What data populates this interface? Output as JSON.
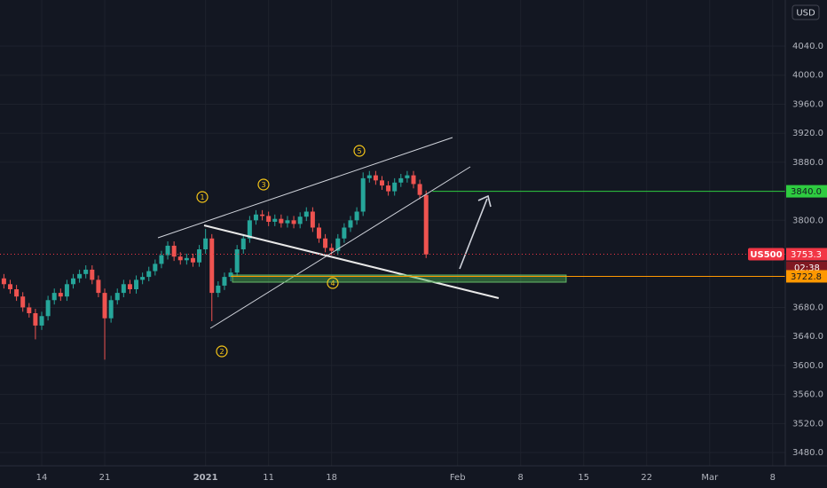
{
  "chart_data": {
    "type": "candlestick",
    "currency": "USD",
    "x": [
      -3,
      -2.5,
      -2,
      -1.5,
      -1,
      -0.5,
      0,
      0.5,
      1,
      1.5,
      2,
      2.5,
      3,
      3.5,
      4,
      4.5,
      5,
      5.5,
      6,
      6.5,
      7,
      7.5,
      8,
      8.5,
      9,
      9.5,
      10,
      10.5,
      11,
      11.5,
      12,
      12.5,
      13,
      13.5,
      14,
      14.5,
      15,
      15.5,
      16,
      16.5,
      17,
      17.5,
      18,
      18.5,
      19,
      19.5,
      20,
      20.5,
      21,
      21.5,
      22,
      22.5,
      23,
      23.5,
      24,
      24.5,
      25,
      25.5,
      26,
      26.5,
      27,
      27.5,
      28,
      28.5,
      29,
      29.5,
      30,
      30.5
    ],
    "open": [
      3720,
      3712,
      3705,
      3695,
      3680,
      3672,
      3655,
      3668,
      3690,
      3700,
      3695,
      3712,
      3720,
      3726,
      3732,
      3718,
      3700,
      3665,
      3690,
      3700,
      3712,
      3705,
      3718,
      3722,
      3730,
      3740,
      3752,
      3765,
      3750,
      3745,
      3748,
      3742,
      3760,
      3775,
      3700,
      3710,
      3722,
      3728,
      3760,
      3775,
      3800,
      3808,
      3806,
      3798,
      3802,
      3796,
      3800,
      3795,
      3805,
      3812,
      3790,
      3775,
      3762,
      3758,
      3775,
      3790,
      3800,
      3812,
      3858,
      3862,
      3855,
      3848,
      3840,
      3852,
      3858,
      3862,
      3850,
      3835
    ],
    "high": [
      3726,
      3718,
      3711,
      3701,
      3686,
      3678,
      3674,
      3696,
      3706,
      3706,
      3718,
      3726,
      3732,
      3738,
      3738,
      3724,
      3706,
      3696,
      3706,
      3718,
      3718,
      3724,
      3728,
      3736,
      3746,
      3758,
      3771,
      3771,
      3756,
      3754,
      3754,
      3766,
      3788,
      3781,
      3716,
      3728,
      3734,
      3766,
      3781,
      3806,
      3814,
      3814,
      3812,
      3808,
      3808,
      3806,
      3806,
      3811,
      3818,
      3818,
      3796,
      3781,
      3768,
      3781,
      3796,
      3806,
      3818,
      3866,
      3868,
      3868,
      3861,
      3854,
      3858,
      3864,
      3868,
      3868,
      3856,
      3841
    ],
    "low": [
      3706,
      3699,
      3689,
      3674,
      3666,
      3636,
      3649,
      3662,
      3684,
      3689,
      3689,
      3706,
      3714,
      3720,
      3712,
      3694,
      3608,
      3659,
      3684,
      3694,
      3699,
      3699,
      3712,
      3716,
      3724,
      3734,
      3746,
      3744,
      3739,
      3739,
      3736,
      3736,
      3754,
      3661,
      3694,
      3704,
      3716,
      3722,
      3754,
      3769,
      3794,
      3800,
      3792,
      3792,
      3790,
      3790,
      3789,
      3789,
      3799,
      3784,
      3769,
      3756,
      3752,
      3752,
      3769,
      3784,
      3794,
      3806,
      3852,
      3849,
      3842,
      3834,
      3834,
      3846,
      3852,
      3844,
      3829,
      3748
    ],
    "close": [
      3712,
      3705,
      3695,
      3680,
      3672,
      3655,
      3668,
      3690,
      3700,
      3695,
      3712,
      3720,
      3726,
      3732,
      3718,
      3700,
      3665,
      3690,
      3700,
      3712,
      3705,
      3718,
      3722,
      3730,
      3740,
      3752,
      3765,
      3750,
      3745,
      3748,
      3742,
      3760,
      3775,
      3700,
      3710,
      3722,
      3728,
      3760,
      3775,
      3800,
      3808,
      3806,
      3798,
      3802,
      3796,
      3800,
      3795,
      3805,
      3812,
      3790,
      3775,
      3762,
      3758,
      3775,
      3790,
      3800,
      3812,
      3858,
      3862,
      3855,
      3848,
      3840,
      3852,
      3858,
      3862,
      3850,
      3835,
      3753
    ],
    "up_color": "#26a69a",
    "down_color": "#ef5350",
    "xlim": [
      -3.31,
      59
    ],
    "ylim": [
      3461.7,
      4103.6
    ],
    "xticks": [
      {
        "value": 0,
        "label": "14"
      },
      {
        "value": 5,
        "label": "21"
      },
      {
        "value": 13,
        "label": "2021"
      },
      {
        "value": 18,
        "label": "11"
      },
      {
        "value": 23,
        "label": "18"
      },
      {
        "value": 33,
        "label": "Feb"
      },
      {
        "value": 38,
        "label": "8"
      },
      {
        "value": 43,
        "label": "15"
      },
      {
        "value": 48,
        "label": "22"
      },
      {
        "value": 53,
        "label": "Mar"
      },
      {
        "value": 58,
        "label": "8"
      }
    ],
    "yticks": [
      {
        "value": 4040,
        "label": "4040.0"
      },
      {
        "value": 4000,
        "label": "4000.0"
      },
      {
        "value": 3960,
        "label": "3960.0"
      },
      {
        "value": 3920,
        "label": "3920.0"
      },
      {
        "value": 3880,
        "label": "3880.0"
      },
      {
        "value": 3800,
        "label": "3800.0"
      },
      {
        "value": 3680,
        "label": "3680.0"
      },
      {
        "value": 3640,
        "label": "3640.0"
      },
      {
        "value": 3600,
        "label": "3600.0"
      },
      {
        "value": 3560,
        "label": "3560.0"
      },
      {
        "value": 3520,
        "label": "3520.0"
      },
      {
        "value": 3480,
        "label": "3480.0"
      }
    ],
    "grid": true,
    "symbol": "US500",
    "last_price": {
      "value": 3753.3,
      "color": "#f23645",
      "countdown": "02:38"
    },
    "levels": [
      {
        "value": 3840,
        "label": "3840.0",
        "color": "#2ecc40",
        "start": 31
      },
      {
        "value": 3722.8,
        "label": "3722.8",
        "color": "#ff9800",
        "start": 15
      }
    ],
    "annotations": [
      "1",
      "2",
      "3",
      "4",
      "5"
    ]
  }
}
